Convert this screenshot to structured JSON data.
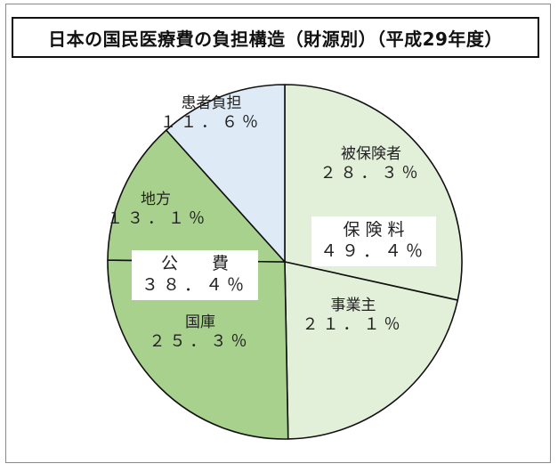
{
  "chart_data": {
    "type": "pie",
    "title": "日本の国民医療費の負担構造（財源別）（平成29年度）",
    "slices": [
      {
        "label": "被保険者",
        "value_text": "２８．３％",
        "value": 28.3,
        "color": "#e2efd9",
        "group": "保険料"
      },
      {
        "label": "事業主",
        "value_text": "２１．１％",
        "value": 21.1,
        "color": "#e2efd9",
        "group": "保険料"
      },
      {
        "label": "国庫",
        "value_text": "２５．３％",
        "value": 25.3,
        "color": "#a9d18e",
        "group": "公費"
      },
      {
        "label": "地方",
        "value_text": "１３．１％",
        "value": 13.1,
        "color": "#a9d18e",
        "group": "公費"
      },
      {
        "label": "患者負担",
        "value_text": "１１．６％",
        "value": 11.6,
        "color": "#deebf7",
        "group": ""
      }
    ],
    "groups": [
      {
        "label": "保 険 料",
        "value_text": "４９．４％",
        "value": 49.4
      },
      {
        "label": "公　　費",
        "value_text": "３８．４％",
        "value": 38.4
      }
    ],
    "stroke_color": "#111111",
    "legend": "none"
  }
}
